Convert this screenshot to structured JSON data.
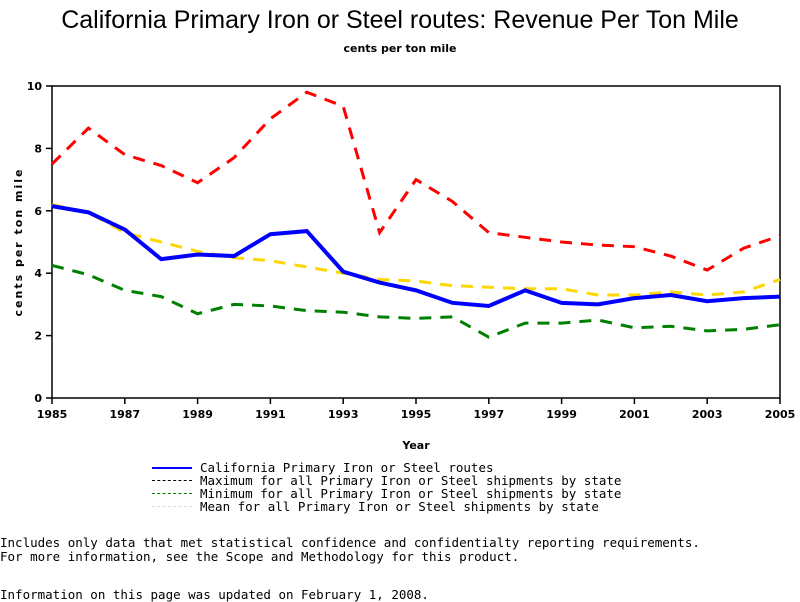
{
  "chart_data": {
    "type": "line",
    "title": "California Primary Iron or Steel routes: Revenue Per Ton Mile",
    "subtitle": "cents per ton mile",
    "xlabel": "Year",
    "ylabel": "cents per ton mile",
    "xlim": [
      1985,
      2005
    ],
    "ylim": [
      0,
      10
    ],
    "x_ticks": [
      1985,
      1987,
      1989,
      1991,
      1993,
      1995,
      1997,
      1999,
      2001,
      2003,
      2005
    ],
    "y_ticks": [
      0,
      2,
      4,
      6,
      8,
      10
    ],
    "x": [
      1985,
      1986,
      1987,
      1988,
      1989,
      1990,
      1991,
      1992,
      1993,
      1994,
      1995,
      1996,
      1997,
      1998,
      1999,
      2000,
      2001,
      2002,
      2003,
      2004,
      2005
    ],
    "series": [
      {
        "name": "California Primary Iron or Steel routes",
        "color": "#0000ff",
        "style": "solid",
        "values": [
          6.15,
          5.95,
          5.4,
          4.45,
          4.6,
          4.55,
          5.25,
          5.35,
          4.05,
          3.7,
          3.45,
          3.05,
          2.95,
          3.45,
          3.05,
          3.0,
          3.2,
          3.3,
          3.1,
          3.2,
          3.25
        ]
      },
      {
        "name": "Maximum for all Primary Iron or Steel shipments by state",
        "color": "#ff0000",
        "style": "dashed",
        "values": [
          7.5,
          8.65,
          7.8,
          7.45,
          6.9,
          7.7,
          8.95,
          9.8,
          9.35,
          5.3,
          7.0,
          6.3,
          5.3,
          5.15,
          5.0,
          4.9,
          4.85,
          4.55,
          4.1,
          4.8,
          5.2
        ]
      },
      {
        "name": "Minimum for all Primary Iron or Steel shipments by state",
        "color": "#008000",
        "style": "dashed",
        "values": [
          4.25,
          3.95,
          3.45,
          3.25,
          2.7,
          3.0,
          2.95,
          2.8,
          2.75,
          2.6,
          2.55,
          2.6,
          1.95,
          2.4,
          2.4,
          2.5,
          2.25,
          2.3,
          2.15,
          2.2,
          2.35
        ]
      },
      {
        "name": "Mean for all Primary Iron or Steel shipments by state",
        "color": "#ffd700",
        "style": "dashed",
        "values": [
          6.2,
          5.95,
          5.3,
          5.0,
          4.7,
          4.5,
          4.4,
          4.2,
          4.0,
          3.8,
          3.75,
          3.6,
          3.55,
          3.5,
          3.5,
          3.3,
          3.3,
          3.4,
          3.3,
          3.4,
          3.8
        ]
      }
    ],
    "legend": "bottom",
    "grid": false
  },
  "notes": [
    "Includes only data that met statistical confidence and confidentialty reporting requirements.",
    "For more information, see the Scope and Methodology for this product."
  ],
  "updated": "Information on this page was updated on February 1, 2008."
}
